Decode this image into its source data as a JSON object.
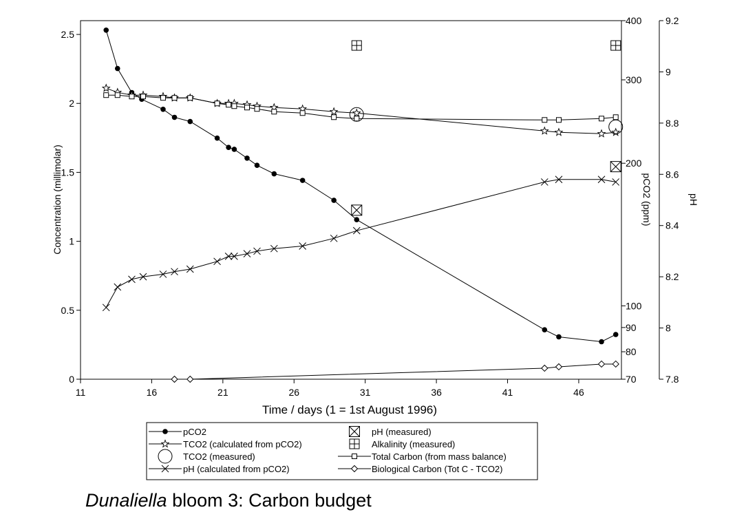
{
  "chart_data": {
    "type": "line",
    "title_italic": "Dunaliella",
    "title_rest": " bloom 3: Carbon budget",
    "xlabel": "Time / days (1 = 1st August 1996)",
    "ylabel": "Concentration (millimolar)",
    "y2label": "pCO2 (ppm)",
    "y3label": "pH",
    "xlim": [
      11,
      49
    ],
    "ylim": [
      0,
      2.6
    ],
    "y2_scale": "log",
    "y2lim": [
      70,
      400
    ],
    "y3lim": [
      7.8,
      9.2
    ],
    "grid": false,
    "legend_position": "bottom",
    "x_ticks": [
      "11",
      "16",
      "21",
      "26",
      "31",
      "36",
      "41",
      "46"
    ],
    "y_ticks": [
      "0",
      "0.5",
      "1",
      "1.5",
      "2",
      "2.5"
    ],
    "y2_ticks": [
      "70",
      "80",
      "90",
      "100",
      "200",
      "300",
      "400"
    ],
    "y3_ticks": [
      "7.8",
      "8",
      "8.2",
      "8.4",
      "8.6",
      "8.8",
      "9",
      "9.2"
    ],
    "series": [
      {
        "name": "pCO2",
        "marker": "dot",
        "axis": "y2",
        "points": [
          [
            12.8,
            382
          ],
          [
            13.6,
            317
          ],
          [
            14.6,
            282
          ],
          [
            15.3,
            273
          ],
          [
            16.8,
            260
          ],
          [
            17.6,
            250
          ],
          [
            18.7,
            245
          ],
          [
            20.6,
            226
          ],
          [
            21.4,
            216
          ],
          [
            21.8,
            214
          ],
          [
            22.7,
            205
          ],
          [
            23.4,
            198
          ],
          [
            24.6,
            190
          ],
          [
            26.6,
            184
          ],
          [
            28.8,
            167
          ],
          [
            30.4,
            152
          ],
          [
            43.6,
            89
          ],
          [
            44.6,
            86
          ],
          [
            47.6,
            84
          ],
          [
            48.6,
            87
          ]
        ]
      },
      {
        "name": "TCO2 (calculated from pCO2)",
        "marker": "star",
        "axis": "y",
        "points": [
          [
            12.8,
            2.11
          ],
          [
            13.6,
            2.08
          ],
          [
            14.6,
            2.06
          ],
          [
            15.4,
            2.06
          ],
          [
            16.8,
            2.05
          ],
          [
            17.6,
            2.04
          ],
          [
            18.7,
            2.04
          ],
          [
            20.6,
            2.0
          ],
          [
            21.4,
            2.0
          ],
          [
            21.8,
            2.0
          ],
          [
            22.7,
            1.99
          ],
          [
            23.4,
            1.98
          ],
          [
            24.6,
            1.97
          ],
          [
            26.6,
            1.96
          ],
          [
            28.8,
            1.94
          ],
          [
            30.4,
            1.93
          ],
          [
            43.6,
            1.8
          ],
          [
            44.6,
            1.79
          ],
          [
            47.6,
            1.78
          ],
          [
            48.6,
            1.79
          ]
        ]
      },
      {
        "name": "TCO2 (measured)",
        "marker": "circle",
        "axis": "y",
        "points": [
          [
            30.4,
            1.92
          ],
          [
            48.6,
            1.83
          ]
        ]
      },
      {
        "name": "pH (calculated from pCO2)",
        "marker": "x",
        "axis": "y3",
        "points": [
          [
            12.8,
            8.08
          ],
          [
            13.6,
            8.16
          ],
          [
            14.6,
            8.19
          ],
          [
            15.4,
            8.2
          ],
          [
            16.8,
            8.21
          ],
          [
            17.6,
            8.22
          ],
          [
            18.7,
            8.23
          ],
          [
            20.6,
            8.26
          ],
          [
            21.4,
            8.28
          ],
          [
            21.8,
            8.28
          ],
          [
            22.7,
            8.29
          ],
          [
            23.4,
            8.3
          ],
          [
            24.6,
            8.31
          ],
          [
            26.6,
            8.32
          ],
          [
            28.8,
            8.35
          ],
          [
            30.4,
            8.38
          ],
          [
            43.6,
            8.57
          ],
          [
            44.6,
            8.58
          ],
          [
            47.6,
            8.58
          ],
          [
            48.6,
            8.57
          ]
        ]
      },
      {
        "name": "pH (measured)",
        "marker": "boxx",
        "axis": "y3",
        "points": [
          [
            30.4,
            8.46
          ],
          [
            48.6,
            8.63
          ]
        ]
      },
      {
        "name": "Alkalinity (measured)",
        "marker": "boxplus",
        "axis": "y",
        "points": [
          [
            30.4,
            2.42
          ],
          [
            48.6,
            2.42
          ]
        ]
      },
      {
        "name": "Total Carbon (from mass balance)",
        "marker": "square",
        "axis": "y",
        "points": [
          [
            12.8,
            2.06
          ],
          [
            13.6,
            2.06
          ],
          [
            14.6,
            2.05
          ],
          [
            15.4,
            2.05
          ],
          [
            16.8,
            2.04
          ],
          [
            17.6,
            2.04
          ],
          [
            18.7,
            2.04
          ],
          [
            20.6,
            2.0
          ],
          [
            21.4,
            1.99
          ],
          [
            21.8,
            1.98
          ],
          [
            22.7,
            1.97
          ],
          [
            23.4,
            1.96
          ],
          [
            24.6,
            1.94
          ],
          [
            26.6,
            1.93
          ],
          [
            28.8,
            1.9
          ],
          [
            30.4,
            1.89
          ],
          [
            43.6,
            1.88
          ],
          [
            44.6,
            1.88
          ],
          [
            47.6,
            1.89
          ],
          [
            48.6,
            1.9
          ]
        ]
      },
      {
        "name": "Biological Carbon (Tot C - TCO2)",
        "marker": "diamond",
        "axis": "y",
        "points": [
          [
            17.6,
            0.0
          ],
          [
            18.7,
            0.0
          ],
          [
            43.6,
            0.08
          ],
          [
            44.6,
            0.09
          ],
          [
            47.6,
            0.11
          ],
          [
            48.6,
            0.11
          ]
        ]
      }
    ],
    "legend": {
      "left": [
        "pCO2",
        "TCO2 (calculated from pCO2)",
        "TCO2 (measured)",
        "pH (calculated from pCO2)"
      ],
      "right": [
        "pH (measured)",
        "Alkalinity (measured)",
        "Total Carbon (from mass balance)",
        "Biological Carbon (Tot C - TCO2)"
      ]
    }
  }
}
